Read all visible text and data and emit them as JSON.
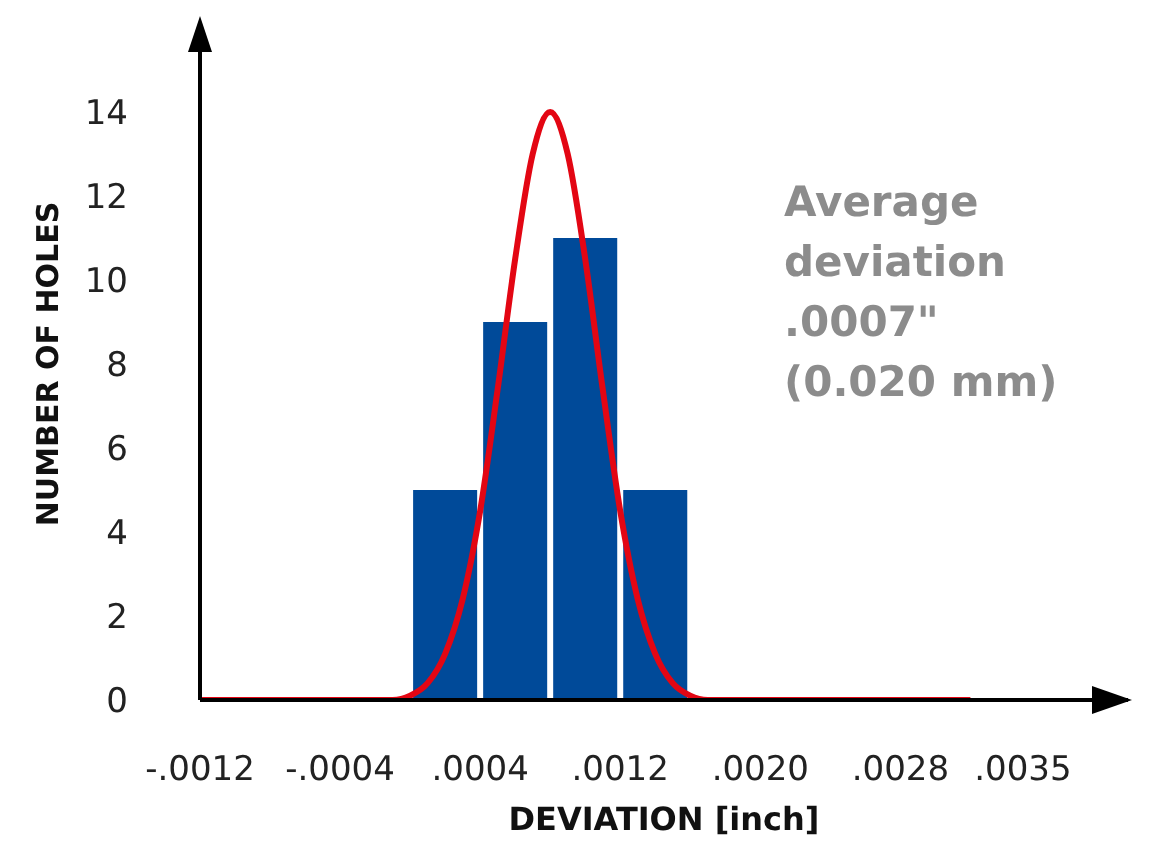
{
  "chart_data": {
    "type": "histogram",
    "xlabel": "DEVIATION   [inch]",
    "ylabel": "NUMBER OF HOLES",
    "bins": [
      0,
      0.0004,
      0.0008,
      0.0012,
      0.0016
    ],
    "values": [
      5,
      9,
      11,
      5
    ],
    "color": "#004a99",
    "series": [
      {
        "type": "line",
        "color": "#e30613",
        "x": [
          -0.0012,
          -0.0001,
          0,
          0.0001,
          0.0002,
          0.0003,
          0.0004,
          0.0005,
          0.0006,
          0.0007,
          0.0008,
          0.0009,
          0.001,
          0.0011,
          0.0012,
          0.0013,
          0.0014,
          0.0015,
          0.0016,
          0.0017,
          0.0032
        ],
        "values": [
          0,
          0,
          0.1,
          0.4,
          1.1,
          2.4,
          4.5,
          7.4,
          10.5,
          13,
          14,
          13,
          10.5,
          7.4,
          4.5,
          2.4,
          1.1,
          0.4,
          0.1,
          0,
          0
        ]
      }
    ],
    "xlim": [
      -0.0012,
      0.0041
    ],
    "xticks": [
      {
        "value": -0.0012,
        "label": "-.0012"
      },
      {
        "value": -0.0004,
        "label": "-.0004"
      },
      {
        "value": 0.0004,
        "label": ".0004"
      },
      {
        "value": 0.0012,
        "label": ".0012"
      },
      {
        "value": 0.002,
        "label": ".0020"
      },
      {
        "value": 0.0028,
        "label": ".0028"
      },
      {
        "value": 0.0035,
        "label": ".0035"
      }
    ],
    "ylim": [
      0,
      16
    ],
    "yticks": [
      0,
      2,
      4,
      6,
      8,
      10,
      12,
      14
    ],
    "annotations": [
      "Average deviation .0007\" (0.020 mm)"
    ]
  }
}
